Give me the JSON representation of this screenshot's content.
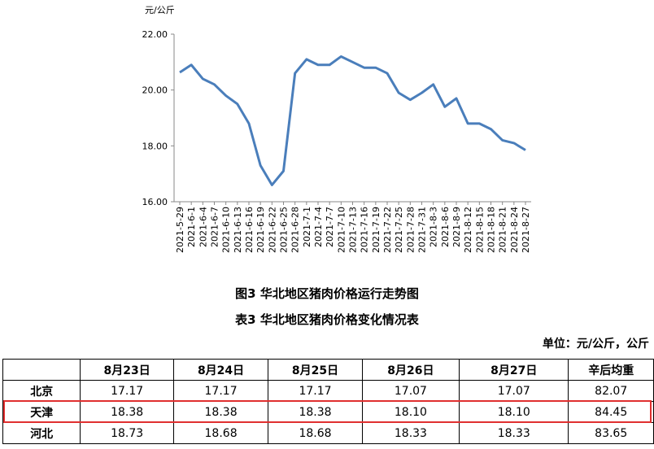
{
  "chart_data": {
    "type": "line",
    "y_unit": "元/公斤",
    "categories": [
      "2021-5-29",
      "2021-6-1",
      "2021-6-4",
      "2021-6-7",
      "2021-6-10",
      "2021-6-13",
      "2021-6-16",
      "2021-6-19",
      "2021-6-22",
      "2021-6-25",
      "2021-6-28",
      "2021-7-1",
      "2021-7-4",
      "2021-7-7",
      "2021-7-10",
      "2021-7-13",
      "2021-7-16",
      "2021-7-19",
      "2021-7-22",
      "2021-7-25",
      "2021-7-28",
      "2021-7-31",
      "2021-8-3",
      "2021-8-6",
      "2021-8-9",
      "2021-8-12",
      "2021-8-15",
      "2021-8-18",
      "2021-8-21",
      "2021-8-24",
      "2021-8-27"
    ],
    "values": [
      20.63,
      20.9,
      20.4,
      20.2,
      19.8,
      19.5,
      18.8,
      17.3,
      16.6,
      17.1,
      20.6,
      21.1,
      20.9,
      20.9,
      21.2,
      21.0,
      20.8,
      20.8,
      20.6,
      19.9,
      19.65,
      19.9,
      20.2,
      19.4,
      19.7,
      18.8,
      18.8,
      18.6,
      18.2,
      18.1,
      17.85
    ],
    "color": "#4a7ebb",
    "ylim": [
      16,
      22
    ],
    "yticks": [
      {
        "value": 16,
        "label": "16.00"
      },
      {
        "value": 18,
        "label": "18.00"
      },
      {
        "value": 20,
        "label": "20.00"
      },
      {
        "value": 22,
        "label": "22.00"
      }
    ]
  },
  "captions": [
    "图3 华北地区猪肉价格运行走势图",
    "表3 华北地区猪肉价格变化情况表"
  ],
  "unit": "单位：元/公斤，公斤",
  "table": {
    "header": [
      "8月23日",
      "8月24日",
      "8月25日",
      "8月26日",
      "8月27日",
      "辛后均重"
    ],
    "rows": [
      [
        "北京",
        "17.17",
        "17.17",
        "17.17",
        "17.07",
        "17.07",
        "82.07"
      ],
      [
        "天津",
        "18.38",
        "18.38",
        "18.38",
        "18.10",
        "18.10",
        "84.45"
      ],
      [
        "河北",
        "18.73",
        "18.68",
        "18.68",
        "18.33",
        "18.33",
        "83.65"
      ]
    ],
    "highlight_row": 1
  }
}
